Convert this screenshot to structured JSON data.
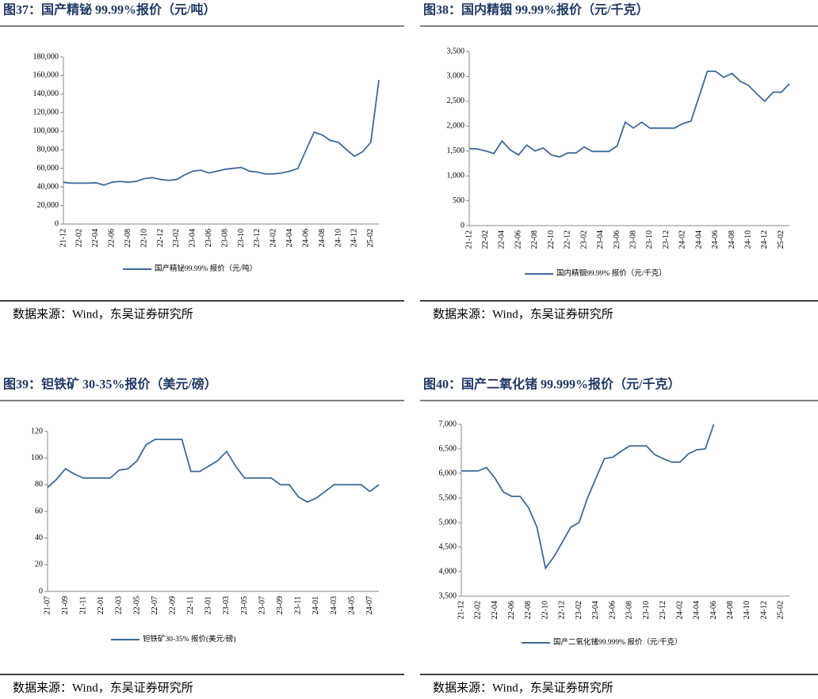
{
  "chart_data": [
    {
      "type": "line",
      "title": "图37：国产精铋 99.99%报价（元/吨）",
      "categories": [
        "21-12",
        null,
        "22-02",
        null,
        "22-04",
        null,
        "22-06",
        null,
        "22-08",
        null,
        "22-10",
        null,
        "22-12",
        null,
        "23-02",
        null,
        "23-04",
        null,
        "23-06",
        null,
        "23-08",
        null,
        "23-10",
        null,
        "23-12",
        null,
        "24-02",
        null,
        "24-04",
        null,
        "24-06",
        null,
        "24-08",
        null,
        "24-10",
        null,
        "24-12",
        null,
        "25-02",
        null
      ],
      "series": [
        {
          "name": "国产精铋99.99% 报价（元/吨）",
          "color": "#3d6a99",
          "values": [
            45000,
            44000,
            44000,
            44000,
            44500,
            42000,
            45000,
            46000,
            45000,
            46000,
            49000,
            50000,
            48000,
            47000,
            48000,
            53000,
            57000,
            58000,
            55000,
            57000,
            59000,
            60000,
            61000,
            57000,
            56000,
            54000,
            54000,
            55000,
            57000,
            60000,
            80000,
            99000,
            96000,
            90000,
            88000,
            80000,
            73000,
            78000,
            88000,
            155000
          ]
        }
      ],
      "ylim": [
        0,
        180000
      ],
      "yticks": [
        0,
        {
          "value": 20000,
          "label": "20,000"
        },
        {
          "value": 40000,
          "label": "40,000"
        },
        {
          "value": 60000,
          "label": "60,000"
        },
        {
          "value": 80000,
          "label": "80,000"
        },
        {
          "value": 100000,
          "label": "100,000"
        },
        {
          "value": 120000,
          "label": "120,000"
        },
        {
          "value": 140000,
          "label": "140,000"
        },
        {
          "value": 160000,
          "label": "160,000"
        },
        {
          "value": 180000,
          "label": "180,000"
        }
      ]
    },
    {
      "type": "line",
      "title": "图38：国内精铟 99.99%报价（元/千克）",
      "categories": [
        "21-12",
        null,
        "22-02",
        null,
        "22-04",
        null,
        "22-06",
        null,
        "22-08",
        null,
        "22-10",
        null,
        "22-12",
        null,
        "23-02",
        null,
        "23-04",
        null,
        "23-06",
        null,
        "23-08",
        null,
        "23-10",
        null,
        "23-12",
        null,
        "24-02",
        null,
        "24-04",
        null,
        "24-06",
        null,
        "24-08",
        null,
        "24-10",
        null,
        "24-12",
        null,
        "25-02",
        null
      ],
      "series": [
        {
          "name": "国内精铟99.99% 报价（元/千克）",
          "color": "#3d6a99",
          "values": [
            1550,
            1540,
            1500,
            1450,
            1700,
            1520,
            1420,
            1620,
            1500,
            1560,
            1420,
            1380,
            1460,
            1460,
            1580,
            1490,
            1490,
            1490,
            1600,
            2080,
            1960,
            2080,
            1960,
            1960,
            1960,
            1960,
            2050,
            2100,
            2600,
            3100,
            3100,
            2980,
            3060,
            2900,
            2820,
            2650,
            2500,
            2680,
            2680,
            2850
          ]
        }
      ],
      "ylim": [
        0,
        3500
      ],
      "yticks": [
        0,
        500,
        {
          "value": 1000,
          "label": "1,000"
        },
        {
          "value": 1500,
          "label": "1,500"
        },
        {
          "value": 2000,
          "label": "2,000"
        },
        {
          "value": 2500,
          "label": "2,500"
        },
        {
          "value": 3000,
          "label": "3,000"
        },
        {
          "value": 3500,
          "label": "3,500"
        }
      ]
    },
    {
      "type": "line",
      "title": "图39：钽铁矿 30-35%报价（美元/磅）",
      "categories": [
        "21-07",
        null,
        "21-09",
        null,
        "21-11",
        null,
        "22-01",
        null,
        "22-03",
        null,
        "22-05",
        null,
        "22-07",
        null,
        "22-09",
        null,
        "22-11",
        null,
        "23-01",
        null,
        "23-03",
        null,
        "23-05",
        null,
        "23-07",
        null,
        "23-09",
        null,
        "23-11",
        null,
        "24-01",
        null,
        "24-03",
        null,
        "24-05",
        null,
        "24-07",
        null
      ],
      "series": [
        {
          "name": "钽铁矿30-35% 报价(美元/磅)",
          "color": "#3d6a99",
          "values": [
            78,
            84,
            92,
            88,
            85,
            85,
            85,
            85,
            91,
            92,
            98,
            110,
            114,
            114,
            114,
            114,
            90,
            90,
            94,
            98,
            105,
            94,
            85,
            85,
            85,
            85,
            80,
            80,
            71,
            67,
            70,
            75,
            80,
            80,
            80,
            80,
            75,
            80
          ]
        }
      ],
      "ylim": [
        0,
        120
      ],
      "yticks": [
        0,
        20,
        40,
        60,
        80,
        100,
        120
      ]
    },
    {
      "type": "line",
      "title": "图40：国产二氧化锗 99.999%报价（元/千克）",
      "categories": [
        "21-12",
        null,
        "22-02",
        null,
        "22-04",
        null,
        "22-06",
        null,
        "22-08",
        null,
        "22-10",
        null,
        "22-12",
        null,
        "23-02",
        null,
        "23-04",
        null,
        "23-06",
        null,
        "23-08",
        null,
        "23-10",
        null,
        "23-12",
        null,
        "24-02",
        null,
        "24-04",
        null,
        "24-06",
        null,
        "24-08",
        null,
        "24-10",
        null,
        "24-12",
        null,
        "25-02",
        null
      ],
      "series": [
        {
          "name": "国产二氧化锗99.999% 报价（元/千克）",
          "color": "#3d6a99",
          "values": [
            6050,
            6050,
            6050,
            6120,
            5900,
            5620,
            5530,
            5530,
            5300,
            4900,
            4070,
            4300,
            4600,
            4900,
            5000,
            5500,
            5900,
            6300,
            6330,
            6450,
            6560,
            6560,
            6560,
            6380,
            6300,
            6230,
            6230,
            6400,
            6480,
            6500,
            7000,
            null,
            null,
            null,
            null,
            null,
            null,
            null,
            null,
            null
          ]
        }
      ],
      "ylim": [
        3500,
        7000
      ],
      "yticks": [
        {
          "value": 3500,
          "label": "3,500"
        },
        {
          "value": 4000,
          "label": "4,000"
        },
        {
          "value": 4500,
          "label": "4,500"
        },
        {
          "value": 5000,
          "label": "5,000"
        },
        {
          "value": 5500,
          "label": "5,500"
        },
        {
          "value": 6000,
          "label": "6,000"
        },
        {
          "value": 6500,
          "label": "6,500"
        },
        {
          "value": 7000,
          "label": "7,000"
        }
      ]
    }
  ],
  "sources": [
    "数据来源：Wind，东吴证券研究所",
    "数据来源：Wind，东吴证券研究所",
    "数据来源：Wind，东吴证券研究所",
    "数据来源：Wind，东吴证券研究所"
  ]
}
